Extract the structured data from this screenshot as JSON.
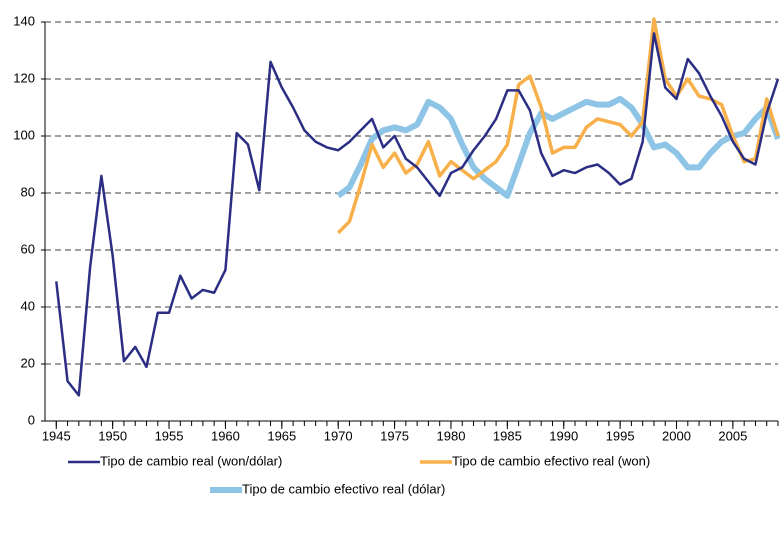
{
  "chart_data": {
    "type": "line",
    "x": [
      1945,
      1946,
      1947,
      1948,
      1949,
      1950,
      1951,
      1952,
      1953,
      1954,
      1955,
      1956,
      1957,
      1958,
      1959,
      1960,
      1961,
      1962,
      1963,
      1964,
      1965,
      1966,
      1967,
      1968,
      1969,
      1970,
      1971,
      1972,
      1973,
      1974,
      1975,
      1976,
      1977,
      1978,
      1979,
      1980,
      1981,
      1982,
      1983,
      1984,
      1985,
      1986,
      1987,
      1988,
      1989,
      1990,
      1991,
      1992,
      1993,
      1994,
      1995,
      1996,
      1997,
      1998,
      1999,
      2000,
      2001,
      2002,
      2003,
      2004,
      2005,
      2006,
      2007,
      2008,
      2009
    ],
    "series": [
      {
        "name": "Tipo de cambio real (won/dólar)",
        "color": "#2b2e83",
        "width": 2.5,
        "values": [
          49,
          14,
          9,
          54,
          86,
          58,
          21,
          26,
          19,
          38,
          38,
          51,
          43,
          46,
          45,
          53,
          101,
          97,
          81,
          126,
          117,
          110,
          102,
          98,
          96,
          95,
          98,
          102,
          106,
          96,
          100,
          92,
          89,
          84,
          79,
          87,
          89,
          95,
          100,
          106,
          116,
          116,
          109,
          94,
          86,
          88,
          87,
          89,
          90,
          87,
          83,
          85,
          98,
          136,
          117,
          113,
          127,
          122,
          114,
          107,
          98,
          92,
          90,
          108,
          120
        ]
      },
      {
        "name": "Tipo de cambio efectivo real (won)",
        "color": "#f7b04a",
        "width": 3.5,
        "values": [
          null,
          null,
          null,
          null,
          null,
          null,
          null,
          null,
          null,
          null,
          null,
          null,
          null,
          null,
          null,
          null,
          null,
          null,
          null,
          null,
          null,
          null,
          null,
          null,
          null,
          66,
          70,
          83,
          97,
          89,
          94,
          87,
          90,
          98,
          86,
          91,
          88,
          85,
          88,
          91,
          97,
          118,
          121,
          110,
          94,
          96,
          96,
          103,
          106,
          105,
          104,
          100,
          105,
          141,
          120,
          114,
          120,
          114,
          113,
          111,
          100,
          91,
          92,
          113,
          100
        ]
      },
      {
        "name": "Tipo de cambio efectivo real (dólar)",
        "color": "#8ec5e6",
        "width": 6,
        "values": [
          null,
          null,
          null,
          null,
          null,
          null,
          null,
          null,
          null,
          null,
          null,
          null,
          null,
          null,
          null,
          null,
          null,
          null,
          null,
          null,
          null,
          null,
          null,
          null,
          null,
          79,
          82,
          90,
          99,
          102,
          103,
          102,
          104,
          112,
          110,
          106,
          97,
          89,
          85,
          82,
          79,
          90,
          101,
          108,
          106,
          108,
          110,
          112,
          111,
          111,
          113,
          110,
          104,
          96,
          97,
          94,
          89,
          89,
          94,
          98,
          100,
          101,
          106,
          110,
          99
        ]
      }
    ],
    "xlim": [
      1944,
      2009
    ],
    "xticks": [
      1945,
      1950,
      1955,
      1960,
      1965,
      1970,
      1975,
      1980,
      1985,
      1990,
      1995,
      2000,
      2005
    ],
    "ylim": [
      0,
      140
    ],
    "yticks": [
      0,
      20,
      40,
      60,
      80,
      100,
      120,
      140
    ],
    "grid": true
  }
}
